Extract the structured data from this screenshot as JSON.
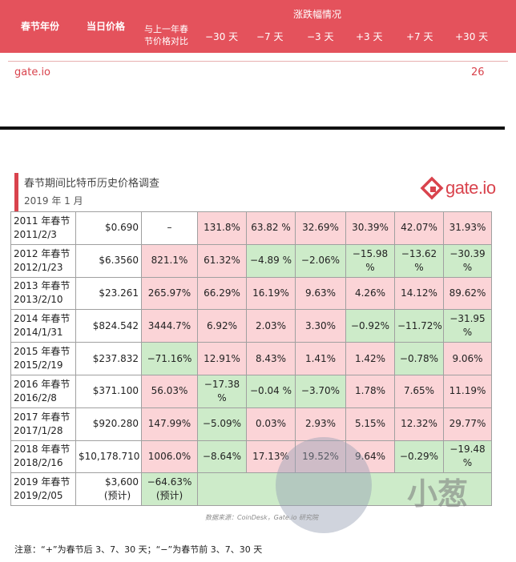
{
  "header": {
    "year_col": "春节年份",
    "price_col": "当日价格",
    "compare_col_line1": "与上一年春",
    "compare_col_line2": "节价格对比",
    "change_group": "涨跌幅情况",
    "offsets": [
      "−30 天",
      "−7 天",
      "−3 天",
      "+3 天",
      "+7 天",
      "+30 天"
    ]
  },
  "top_section": {
    "brand_left": "gate.io",
    "page_num": "26"
  },
  "report": {
    "title": "春节期间比特币历史价格调查",
    "date": "2019 年 1 月",
    "logo_text": "gate.io"
  },
  "rows": [
    {
      "year": "2011 年春节",
      "date": "2011/2/3",
      "price": "$0.690",
      "compare": "–",
      "c": [
        "131.8%",
        "63.82 %",
        "32.69%",
        "30.39%",
        "42.07%",
        "31.93%"
      ]
    },
    {
      "year": "2012 年春节",
      "date": "2012/1/23",
      "price": "$6.3560",
      "compare": "821.1%",
      "c": [
        "61.32%",
        "−4.89 %",
        "−2.06%",
        "−15.98 %",
        "−13.62 %",
        "−30.39 %"
      ]
    },
    {
      "year": "2013 年春节",
      "date": "2013/2/10",
      "price": "$23.261",
      "compare": "265.97%",
      "c": [
        "66.29%",
        "16.19%",
        "9.63%",
        "4.26%",
        "14.12%",
        "89.62%"
      ]
    },
    {
      "year": "2014 年春节",
      "date": "2014/1/31",
      "price": "$824.542",
      "compare": "3444.7%",
      "c": [
        "6.92%",
        "2.03%",
        "3.30%",
        "−0.92%",
        "−11.72%",
        "−31.95 %"
      ]
    },
    {
      "year": "2015 年春节",
      "date": "2015/2/19",
      "price": "$237.832",
      "compare": "−71.16%",
      "c": [
        "12.91%",
        "8.43%",
        "1.41%",
        "1.42%",
        "−0.78%",
        "9.06%"
      ]
    },
    {
      "year": "2016 年春节",
      "date": "2016/2/8",
      "price": "$371.100",
      "compare": "56.03%",
      "c": [
        "−17.38 %",
        "−0.04 %",
        "−3.70%",
        "1.78%",
        "7.65%",
        "11.19%"
      ]
    },
    {
      "year": "2017 年春节",
      "date": "2017/1/28",
      "price": "$920.280",
      "compare": "147.99%",
      "c": [
        "−5.09%",
        "0.03%",
        "2.93%",
        "5.15%",
        "12.32%",
        "29.77%"
      ]
    },
    {
      "year": "2018 年春节",
      "date": "2018/2/16",
      "price": "$10,178.710",
      "compare": "1006.0%",
      "c": [
        "−8.64%",
        "17.13%",
        "19.52%",
        "9.64%",
        "−0.29%",
        "−19.48 %"
      ]
    }
  ],
  "last_row": {
    "year": "2019 年春节",
    "date": "2019/2/05",
    "price": "$3,600",
    "price_note": "(预计)",
    "compare": "−64.63%",
    "compare_note": "(预计)"
  },
  "source": "数据来源：CoinDesk，Gate.io 研究院",
  "note": "注意：“+”为春节后 3、7、30 天；“−”为春节前 3、7、30 天",
  "watermark": "小葱",
  "colors": {
    "header_red": "#e4525c",
    "positive_cell": "#fbd4d7",
    "negative_cell": "#cdebc9",
    "brand_red": "#d9434d"
  }
}
